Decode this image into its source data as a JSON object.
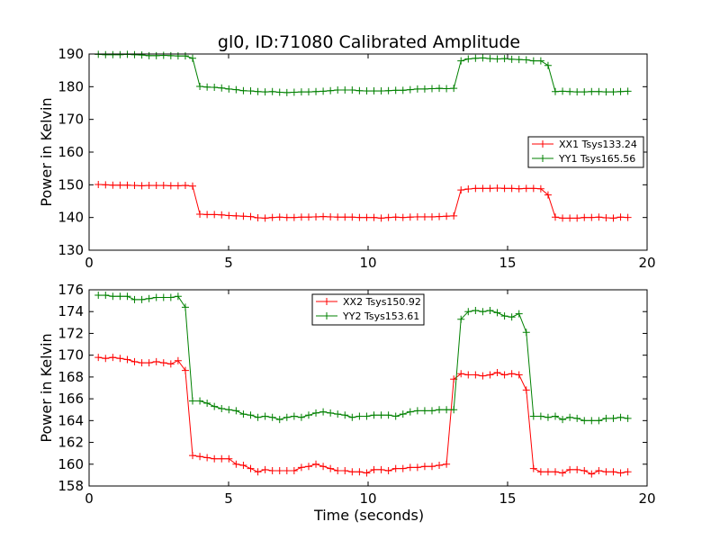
{
  "figure": {
    "title": "gl0, ID:71080 Calibrated Amplitude"
  },
  "chart_data": [
    {
      "type": "line",
      "title": "gl0, ID:71080 Calibrated Amplitude",
      "xlabel": "",
      "ylabel": "Power in Kelvin",
      "xlim": [
        0,
        20
      ],
      "ylim": [
        130,
        190
      ],
      "xticks": [
        0,
        5,
        10,
        15,
        20
      ],
      "yticks": [
        130,
        140,
        150,
        160,
        170,
        180,
        190
      ],
      "grid": false,
      "legend_position": "center-right",
      "x": [
        0.33,
        0.59,
        0.85,
        1.11,
        1.37,
        1.63,
        1.89,
        2.15,
        2.41,
        2.67,
        2.93,
        3.19,
        3.45,
        3.71,
        3.97,
        4.23,
        4.49,
        4.75,
        5.01,
        5.27,
        5.53,
        5.79,
        6.05,
        6.31,
        6.57,
        6.83,
        7.09,
        7.35,
        7.61,
        7.87,
        8.13,
        8.39,
        8.65,
        8.91,
        9.17,
        9.43,
        9.69,
        9.95,
        10.21,
        10.47,
        10.73,
        10.99,
        11.25,
        11.51,
        11.77,
        12.03,
        12.29,
        12.55,
        12.81,
        13.07,
        13.33,
        13.59,
        13.85,
        14.11,
        14.37,
        14.63,
        14.89,
        15.15,
        15.41,
        15.67,
        15.93,
        16.19,
        16.45,
        16.71,
        16.97,
        17.23,
        17.49,
        17.75,
        18.01,
        18.27,
        18.53,
        18.79,
        19.05,
        19.31
      ],
      "series": [
        {
          "name": "XX1 Tsys133.24",
          "color": "#ff0000",
          "values": [
            150.1,
            150.0,
            149.9,
            149.9,
            149.9,
            149.8,
            149.7,
            149.8,
            149.8,
            149.8,
            149.7,
            149.7,
            149.8,
            149.6,
            141.0,
            140.9,
            140.9,
            140.8,
            140.6,
            140.5,
            140.4,
            140.3,
            139.9,
            139.8,
            140.0,
            140.1,
            140.0,
            140.0,
            140.1,
            140.1,
            140.2,
            140.3,
            140.2,
            140.1,
            140.1,
            140.1,
            140.0,
            140.0,
            140.0,
            139.8,
            140.0,
            140.1,
            140.0,
            140.1,
            140.2,
            140.2,
            140.2,
            140.3,
            140.4,
            140.5,
            148.4,
            148.7,
            148.9,
            148.9,
            148.9,
            149.0,
            148.9,
            148.9,
            148.8,
            148.9,
            148.9,
            148.8,
            146.9,
            140.1,
            139.8,
            139.8,
            139.8,
            140.0,
            140.0,
            140.1,
            139.9,
            139.8,
            140.1,
            140.0
          ]
        },
        {
          "name": "YY1 Tsys165.56",
          "color": "#008000",
          "values": [
            189.9,
            189.8,
            189.8,
            189.8,
            189.9,
            189.8,
            189.7,
            189.5,
            189.5,
            189.6,
            189.5,
            189.4,
            189.4,
            188.7,
            180.1,
            179.9,
            179.8,
            179.6,
            179.3,
            179.1,
            178.8,
            178.7,
            178.5,
            178.4,
            178.5,
            178.3,
            178.2,
            178.3,
            178.4,
            178.4,
            178.5,
            178.6,
            178.8,
            179.0,
            179.0,
            179.0,
            178.8,
            178.7,
            178.7,
            178.7,
            178.8,
            178.9,
            178.9,
            179.1,
            179.3,
            179.3,
            179.4,
            179.5,
            179.4,
            179.5,
            187.9,
            188.5,
            188.7,
            188.8,
            188.6,
            188.5,
            188.6,
            188.4,
            188.3,
            188.2,
            187.9,
            187.9,
            186.5,
            178.5,
            178.6,
            178.5,
            178.4,
            178.4,
            178.5,
            178.5,
            178.4,
            178.4,
            178.5,
            178.6
          ]
        }
      ]
    },
    {
      "type": "line",
      "title": "",
      "xlabel": "Time (seconds)",
      "ylabel": "Power in Kelvin",
      "xlim": [
        0,
        20
      ],
      "ylim": [
        158,
        176
      ],
      "xticks": [
        0,
        5,
        10,
        15,
        20
      ],
      "yticks": [
        158,
        160,
        162,
        164,
        166,
        168,
        170,
        172,
        174,
        176
      ],
      "grid": false,
      "legend_position": "top-center",
      "x": [
        0.33,
        0.59,
        0.85,
        1.11,
        1.37,
        1.63,
        1.89,
        2.15,
        2.41,
        2.67,
        2.93,
        3.19,
        3.45,
        3.71,
        3.97,
        4.23,
        4.49,
        4.75,
        5.01,
        5.27,
        5.53,
        5.79,
        6.05,
        6.31,
        6.57,
        6.83,
        7.09,
        7.35,
        7.61,
        7.87,
        8.13,
        8.39,
        8.65,
        8.91,
        9.17,
        9.43,
        9.69,
        9.95,
        10.21,
        10.47,
        10.73,
        10.99,
        11.25,
        11.51,
        11.77,
        12.03,
        12.29,
        12.55,
        12.81,
        13.07,
        13.33,
        13.59,
        13.85,
        14.11,
        14.37,
        14.63,
        14.89,
        15.15,
        15.41,
        15.67,
        15.93,
        16.19,
        16.45,
        16.71,
        16.97,
        17.23,
        17.49,
        17.75,
        18.01,
        18.27,
        18.53,
        18.79,
        19.05,
        19.31
      ],
      "series": [
        {
          "name": "XX2 Tsys150.92",
          "color": "#ff0000",
          "values": [
            169.8,
            169.7,
            169.8,
            169.7,
            169.6,
            169.4,
            169.3,
            169.3,
            169.4,
            169.3,
            169.2,
            169.5,
            168.6,
            160.8,
            160.7,
            160.6,
            160.5,
            160.5,
            160.5,
            160.0,
            159.9,
            159.6,
            159.3,
            159.5,
            159.4,
            159.4,
            159.4,
            159.4,
            159.7,
            159.8,
            160.0,
            159.8,
            159.6,
            159.4,
            159.4,
            159.3,
            159.3,
            159.2,
            159.5,
            159.5,
            159.4,
            159.6,
            159.6,
            159.7,
            159.7,
            159.8,
            159.8,
            159.9,
            160.0,
            167.8,
            168.3,
            168.2,
            168.2,
            168.1,
            168.2,
            168.4,
            168.2,
            168.3,
            168.2,
            166.8,
            159.6,
            159.3,
            159.3,
            159.3,
            159.2,
            159.5,
            159.5,
            159.4,
            159.1,
            159.4,
            159.3,
            159.3,
            159.2,
            159.3
          ],
          "x": [
            0.33,
            0.59,
            0.85,
            1.11,
            1.37,
            1.63,
            1.89,
            2.15,
            2.41,
            2.67,
            2.93,
            3.19,
            3.45,
            3.71,
            3.97,
            4.23,
            4.49,
            4.75,
            5.01,
            5.27,
            5.53,
            5.79,
            6.05,
            6.31,
            6.57,
            6.83,
            7.09,
            7.35,
            7.61,
            7.87,
            8.13,
            8.39,
            8.65,
            8.91,
            9.17,
            9.43,
            9.69,
            9.95,
            10.21,
            10.47,
            10.73,
            10.99,
            11.25,
            11.51,
            11.77,
            12.03,
            12.29,
            12.55,
            12.81,
            13.07,
            13.33,
            13.59,
            13.85,
            14.11,
            14.37,
            14.63,
            14.89,
            15.15,
            15.41,
            15.67,
            15.93,
            16.19,
            16.45,
            16.71,
            16.97,
            17.23,
            17.49,
            17.75,
            18.01,
            18.27,
            18.53,
            18.79,
            19.05,
            19.31
          ]
        },
        {
          "name": "YY2 Tsys153.61",
          "color": "#008000",
          "values": [
            175.5,
            175.5,
            175.4,
            175.4,
            175.4,
            175.1,
            175.1,
            175.2,
            175.3,
            175.3,
            175.3,
            175.4,
            174.4,
            165.8,
            165.8,
            165.6,
            165.3,
            165.1,
            165.0,
            164.9,
            164.6,
            164.5,
            164.3,
            164.4,
            164.3,
            164.1,
            164.3,
            164.4,
            164.3,
            164.5,
            164.7,
            164.8,
            164.7,
            164.6,
            164.5,
            164.3,
            164.4,
            164.4,
            164.5,
            164.5,
            164.5,
            164.4,
            164.6,
            164.8,
            164.9,
            164.9,
            164.9,
            165.0,
            165.0,
            165.0,
            173.3,
            174.0,
            174.1,
            174.0,
            174.1,
            173.9,
            173.6,
            173.5,
            173.8,
            172.1,
            164.4,
            164.4,
            164.3,
            164.4,
            164.1,
            164.3,
            164.2,
            164.0,
            164.0,
            164.0,
            164.2,
            164.2,
            164.3,
            164.2
          ],
          "x": [
            0.33,
            0.59,
            0.85,
            1.11,
            1.37,
            1.63,
            1.89,
            2.15,
            2.41,
            2.67,
            2.93,
            3.19,
            3.45,
            3.71,
            3.97,
            4.23,
            4.49,
            4.75,
            5.01,
            5.27,
            5.53,
            5.79,
            6.05,
            6.31,
            6.57,
            6.83,
            7.09,
            7.35,
            7.61,
            7.87,
            8.13,
            8.39,
            8.65,
            8.91,
            9.17,
            9.43,
            9.69,
            9.95,
            10.21,
            10.47,
            10.73,
            10.99,
            11.25,
            11.51,
            11.77,
            12.03,
            12.29,
            12.55,
            12.81,
            13.07,
            13.33,
            13.59,
            13.85,
            14.11,
            14.37,
            14.63,
            14.89,
            15.15,
            15.41,
            15.67,
            15.93,
            16.19,
            16.45,
            16.71,
            16.97,
            17.23,
            17.49,
            17.75,
            18.01,
            18.27,
            18.53,
            18.79,
            19.05,
            19.31
          ]
        }
      ]
    }
  ]
}
